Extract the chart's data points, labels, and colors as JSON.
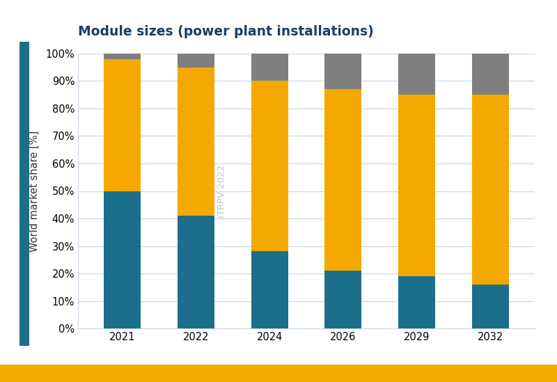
{
  "title": "Module sizes (power plant installations)",
  "years": [
    "2021",
    "2022",
    "2024",
    "2026",
    "2029",
    "2032"
  ],
  "series": {
    "< 2.5 m²": [
      50,
      41,
      28,
      21,
      19,
      16
    ],
    "2.5 to ≤ 3.0 m²": [
      48,
      54,
      62,
      66,
      66,
      69
    ],
    "> 3.0 m²": [
      2,
      5,
      10,
      13,
      15,
      15
    ]
  },
  "colors": {
    "< 2.5 m²": "#1b6f8a",
    "2.5 to ≤ 3.0 m²": "#f5a800",
    "> 3.0 m²": "#7f7f7f"
  },
  "ylabel": "World market share [%]",
  "yticks": [
    0,
    10,
    20,
    30,
    40,
    50,
    60,
    70,
    80,
    90,
    100
  ],
  "ytick_labels": [
    "0%",
    "10%",
    "20%",
    "30%",
    "40%",
    "50%",
    "60%",
    "70%",
    "80%",
    "90%",
    "100%"
  ],
  "watermark": "ITRPV 2022",
  "title_color": "#1c3d6b",
  "left_bar_color": "#1b6f8a",
  "bottom_bar_color": "#f5a800",
  "background_color": "#ffffff",
  "plot_bg_color": "#ffffff",
  "grid_color": "#c8d8e8",
  "bar_width": 0.5
}
